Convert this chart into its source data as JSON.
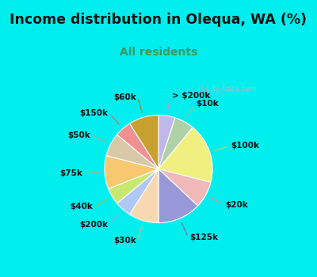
{
  "title": "Income distribution in Olequa, WA (%)",
  "subtitle": "All residents",
  "watermark": "ⓘ City-Data.com",
  "bg_outer": "#00EEEE",
  "bg_panel": "#e8f5ee",
  "slices": [
    {
      "label": "> $200k",
      "value": 5,
      "color": "#c0b8e8"
    },
    {
      "label": "$10k",
      "value": 6,
      "color": "#b0d0a8"
    },
    {
      "label": "$100k",
      "value": 18,
      "color": "#f0f080"
    },
    {
      "label": "$20k",
      "value": 8,
      "color": "#f0b8b8"
    },
    {
      "label": "$125k",
      "value": 13,
      "color": "#9898d8"
    },
    {
      "label": "$30k",
      "value": 9,
      "color": "#f8d8b0"
    },
    {
      "label": "$200k",
      "value": 5,
      "color": "#b0c8f8"
    },
    {
      "label": "$40k",
      "value": 5,
      "color": "#c8e870"
    },
    {
      "label": "$75k",
      "value": 10,
      "color": "#f8c870"
    },
    {
      "label": "$50k",
      "value": 7,
      "color": "#d8c8a8"
    },
    {
      "label": "$150k",
      "value": 5,
      "color": "#f09090"
    },
    {
      "label": "$60k",
      "value": 9,
      "color": "#c8a030"
    }
  ],
  "label_fontsize": 7.5,
  "title_fontsize": 12.5,
  "subtitle_fontsize": 10,
  "title_color": "#111111",
  "subtitle_color": "#3a9a60",
  "watermark_color": "#aaaaaa",
  "line_color_map": {
    "> $200k": "#b0a0d0",
    "$10k": "#90c090",
    "$100k": "#d0d060",
    "$20k": "#e09090",
    "$125k": "#7070b0",
    "$30k": "#e0b870",
    "$200k": "#90a8e0",
    "$40k": "#a0c840",
    "$75k": "#e0a840",
    "$50k": "#b8a888",
    "$150k": "#d07070",
    "$60k": "#a08020"
  }
}
